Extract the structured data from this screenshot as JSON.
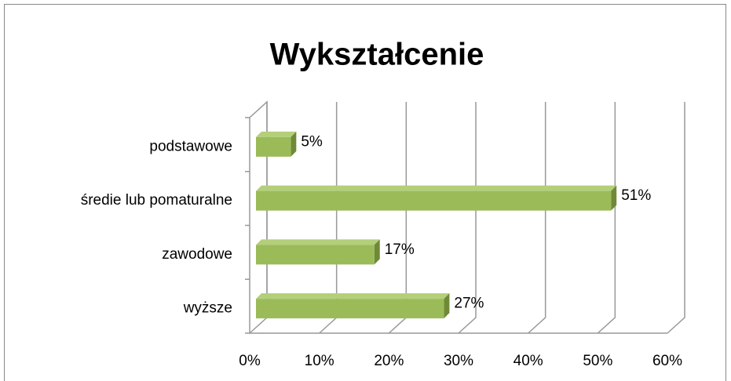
{
  "chart_data": {
    "type": "bar3d_horizontal",
    "title": "Wykształcenie",
    "categories": [
      "podstawowe",
      "średie lub pomaturalne",
      "zawodowe",
      "wyższe"
    ],
    "values": [
      5,
      51,
      17,
      27
    ],
    "value_labels": [
      "5%",
      "51%",
      "17%",
      "27%"
    ],
    "color": "#9bbb59",
    "xlim": [
      0,
      60
    ],
    "xticks": [
      {
        "value": 0,
        "label": "0%"
      },
      {
        "value": 10,
        "label": "10%"
      },
      {
        "value": 20,
        "label": "20%"
      },
      {
        "value": 30,
        "label": "30%"
      },
      {
        "value": 40,
        "label": "40%"
      },
      {
        "value": 50,
        "label": "50%"
      },
      {
        "value": 60,
        "label": "60%"
      }
    ],
    "grid": true
  }
}
